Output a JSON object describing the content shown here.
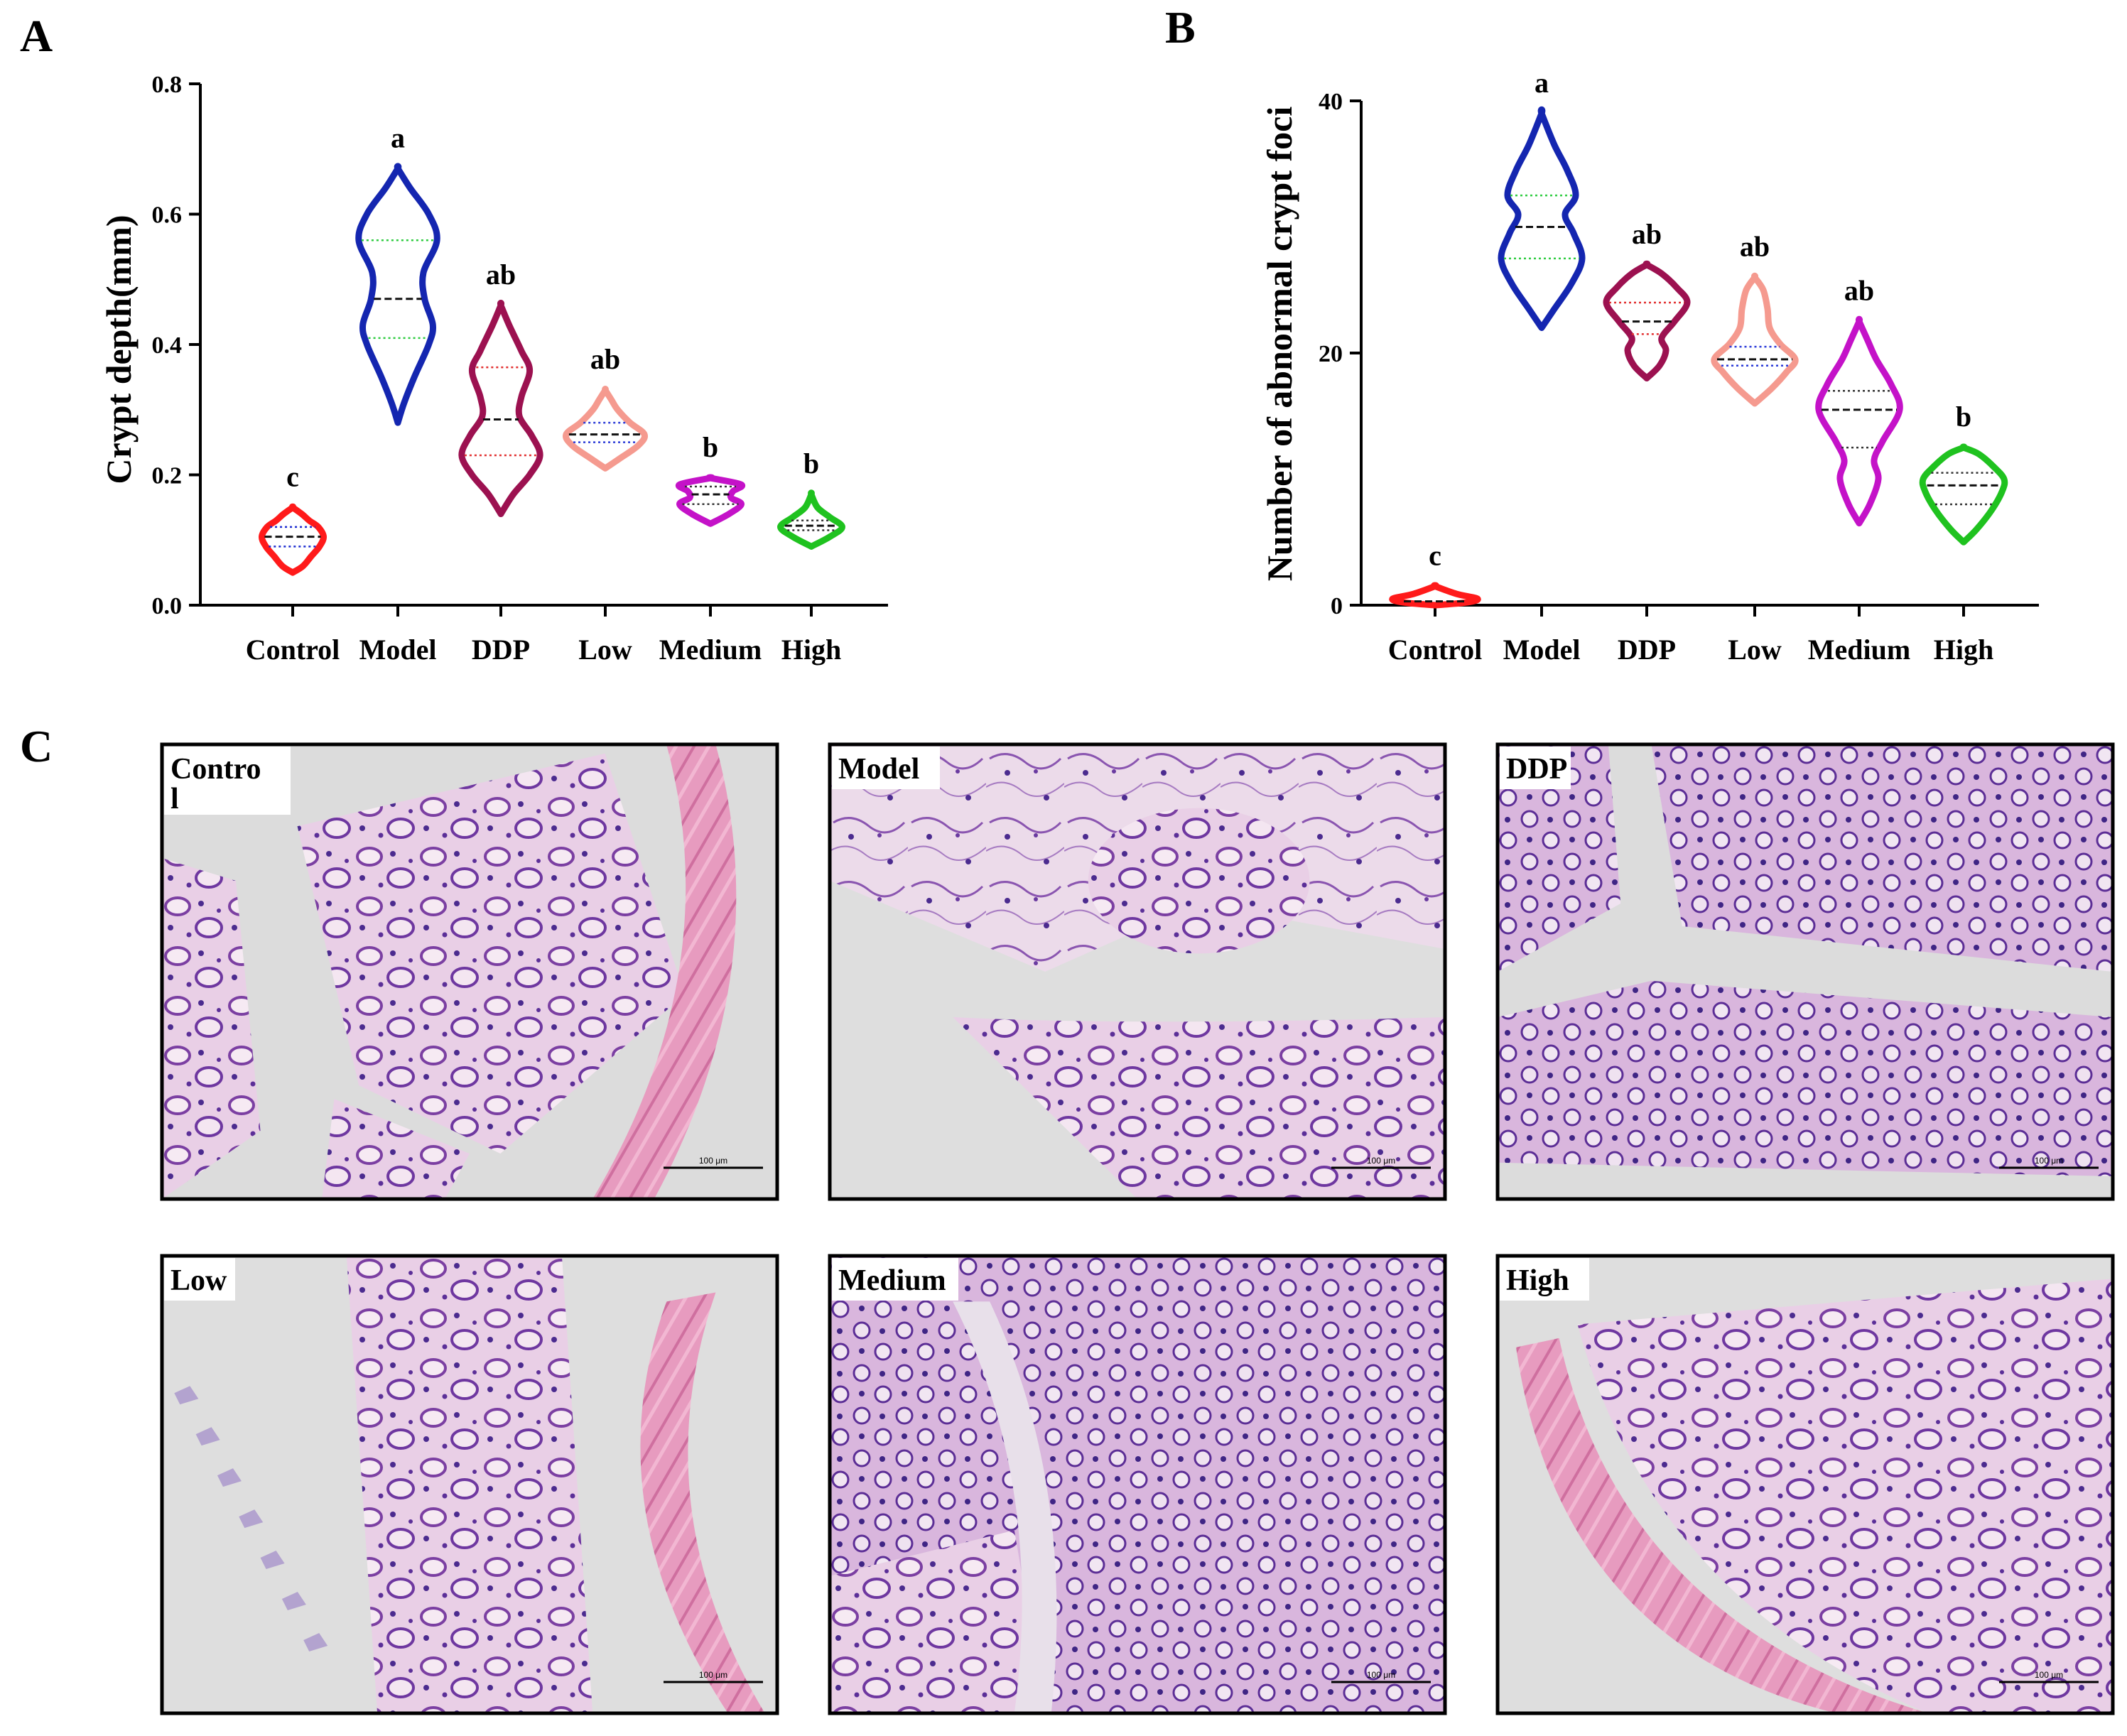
{
  "panels": {
    "a": "A",
    "b": "B",
    "c": "C"
  },
  "colors": {
    "Control": "#ff1a1a",
    "Model": "#1426b0",
    "DDP": "#9c1150",
    "Low": "#f59a8f",
    "Medium": "#c412c8",
    "High": "#1fc21f"
  },
  "chart_data": [
    {
      "type": "violin",
      "panel": "A",
      "title": "",
      "xlabel": "",
      "ylabel": "Crypt depth(mm)",
      "ylim": [
        0,
        0.8
      ],
      "yticks": [
        0.0,
        0.2,
        0.4,
        0.6,
        0.8
      ],
      "ytick_labels": [
        "0.0",
        "0.2",
        "0.4",
        "0.6",
        "0.8"
      ],
      "categories": [
        "Control",
        "Model",
        "DDP",
        "Low",
        "Medium",
        "High"
      ],
      "series": [
        {
          "name": "Control",
          "min": 0.05,
          "max": 0.15,
          "q1": 0.09,
          "median": 0.105,
          "q3": 0.12,
          "sig": "c",
          "profile": [
            [
              0.05,
              0.0
            ],
            [
              0.06,
              0.25
            ],
            [
              0.075,
              0.45
            ],
            [
              0.09,
              0.65
            ],
            [
              0.105,
              0.75
            ],
            [
              0.12,
              0.62
            ],
            [
              0.13,
              0.4
            ],
            [
              0.14,
              0.22
            ],
            [
              0.15,
              0.0
            ]
          ]
        },
        {
          "name": "Model",
          "min": 0.28,
          "max": 0.67,
          "q1": 0.41,
          "median": 0.47,
          "q3": 0.56,
          "sig": "a",
          "profile": [
            [
              0.28,
              0.0
            ],
            [
              0.31,
              0.15
            ],
            [
              0.35,
              0.4
            ],
            [
              0.4,
              0.75
            ],
            [
              0.43,
              0.85
            ],
            [
              0.47,
              0.65
            ],
            [
              0.51,
              0.62
            ],
            [
              0.56,
              0.95
            ],
            [
              0.6,
              0.75
            ],
            [
              0.64,
              0.3
            ],
            [
              0.67,
              0.0
            ]
          ]
        },
        {
          "name": "DDP",
          "min": 0.14,
          "max": 0.46,
          "q1": 0.23,
          "median": 0.285,
          "q3": 0.365,
          "sig": "ab",
          "profile": [
            [
              0.14,
              0.0
            ],
            [
              0.17,
              0.3
            ],
            [
              0.2,
              0.7
            ],
            [
              0.23,
              0.95
            ],
            [
              0.26,
              0.75
            ],
            [
              0.29,
              0.45
            ],
            [
              0.32,
              0.5
            ],
            [
              0.36,
              0.7
            ],
            [
              0.39,
              0.5
            ],
            [
              0.43,
              0.2
            ],
            [
              0.46,
              0.0
            ]
          ]
        },
        {
          "name": "Low",
          "min": 0.21,
          "max": 0.33,
          "q1": 0.25,
          "median": 0.262,
          "q3": 0.28,
          "sig": "ab",
          "profile": [
            [
              0.21,
              0.0
            ],
            [
              0.225,
              0.35
            ],
            [
              0.245,
              0.8
            ],
            [
              0.262,
              0.95
            ],
            [
              0.28,
              0.6
            ],
            [
              0.3,
              0.3
            ],
            [
              0.315,
              0.15
            ],
            [
              0.33,
              0.0
            ]
          ]
        },
        {
          "name": "Medium",
          "min": 0.125,
          "max": 0.195,
          "q1": 0.155,
          "median": 0.17,
          "q3": 0.182,
          "sig": "b",
          "profile": [
            [
              0.125,
              0.0
            ],
            [
              0.14,
              0.45
            ],
            [
              0.155,
              0.75
            ],
            [
              0.165,
              0.5
            ],
            [
              0.175,
              0.55
            ],
            [
              0.185,
              0.75
            ],
            [
              0.195,
              0.0
            ]
          ]
        },
        {
          "name": "High",
          "min": 0.09,
          "max": 0.17,
          "q1": 0.115,
          "median": 0.122,
          "q3": 0.13,
          "sig": "b",
          "profile": [
            [
              0.09,
              0.0
            ],
            [
              0.105,
              0.45
            ],
            [
              0.12,
              0.75
            ],
            [
              0.135,
              0.45
            ],
            [
              0.15,
              0.15
            ],
            [
              0.17,
              0.0
            ]
          ]
        }
      ]
    },
    {
      "type": "violin",
      "panel": "B",
      "title": "",
      "xlabel": "",
      "ylabel": "Number of abnormal crypt foci",
      "ylim": [
        0,
        40
      ],
      "yticks": [
        0,
        20,
        40
      ],
      "ytick_labels": [
        "0",
        "20",
        "40"
      ],
      "categories": [
        "Control",
        "Model",
        "DDP",
        "Low",
        "Medium",
        "High"
      ],
      "series": [
        {
          "name": "Control",
          "min": 0,
          "max": 1.5,
          "median": 0.3,
          "sig": "c",
          "profile": [
            [
              0,
              0.0
            ],
            [
              0.2,
              0.7
            ],
            [
              0.5,
              1.0
            ],
            [
              0.9,
              0.5
            ],
            [
              1.5,
              0.0
            ]
          ]
        },
        {
          "name": "Model",
          "min": 22,
          "max": 39,
          "q1": 27.5,
          "median": 30,
          "q3": 32.5,
          "sig": "a",
          "profile": [
            [
              22,
              0.0
            ],
            [
              23.5,
              0.3
            ],
            [
              25.5,
              0.7
            ],
            [
              27.5,
              0.95
            ],
            [
              29.5,
              0.75
            ],
            [
              31,
              0.55
            ],
            [
              32.5,
              0.8
            ],
            [
              34.5,
              0.6
            ],
            [
              36.5,
              0.3
            ],
            [
              39,
              0.0
            ]
          ]
        },
        {
          "name": "DDP",
          "min": 18,
          "max": 27,
          "q1": 21.5,
          "median": 22.5,
          "q3": 24,
          "sig": "ab",
          "profile": [
            [
              18,
              0.0
            ],
            [
              19,
              0.3
            ],
            [
              20.2,
              0.45
            ],
            [
              21.2,
              0.35
            ],
            [
              22.5,
              0.65
            ],
            [
              24,
              0.95
            ],
            [
              25.2,
              0.7
            ],
            [
              26.3,
              0.35
            ],
            [
              27,
              0.0
            ]
          ]
        },
        {
          "name": "Low",
          "min": 16,
          "max": 26,
          "q1": 19,
          "median": 19.5,
          "q3": 20.5,
          "sig": "ab",
          "profile": [
            [
              16,
              0.0
            ],
            [
              17.2,
              0.4
            ],
            [
              18.5,
              0.75
            ],
            [
              19.5,
              0.95
            ],
            [
              20.7,
              0.6
            ],
            [
              22,
              0.35
            ],
            [
              23.5,
              0.3
            ],
            [
              25,
              0.2
            ],
            [
              26,
              0.0
            ]
          ]
        },
        {
          "name": "Medium",
          "min": 6.5,
          "max": 22.5,
          "q1": 12.5,
          "median": 15.5,
          "q3": 17,
          "sig": "ab",
          "profile": [
            [
              6.5,
              0.0
            ],
            [
              8,
              0.25
            ],
            [
              10,
              0.45
            ],
            [
              11.5,
              0.35
            ],
            [
              13,
              0.55
            ],
            [
              15.5,
              0.95
            ],
            [
              17.5,
              0.75
            ],
            [
              19.5,
              0.4
            ],
            [
              21,
              0.2
            ],
            [
              22.5,
              0.0
            ]
          ]
        },
        {
          "name": "High",
          "min": 5,
          "max": 12.5,
          "q1": 8,
          "median": 9.5,
          "q3": 10.5,
          "sig": "b",
          "profile": [
            [
              5,
              0.0
            ],
            [
              6,
              0.3
            ],
            [
              7.5,
              0.65
            ],
            [
              9,
              0.9
            ],
            [
              10,
              0.95
            ],
            [
              11,
              0.7
            ],
            [
              12,
              0.35
            ],
            [
              12.5,
              0.0
            ]
          ]
        }
      ]
    }
  ],
  "micrographs": [
    {
      "label": "Contro\nl",
      "scale": "100 μm",
      "theme": "control"
    },
    {
      "label": "Model",
      "scale": "100 μm",
      "theme": "model"
    },
    {
      "label": "DDP",
      "scale": "100 μm",
      "theme": "ddp"
    },
    {
      "label": "Low",
      "scale": "100 μm",
      "theme": "low"
    },
    {
      "label": "Medium",
      "scale": "100 μm",
      "theme": "medium"
    },
    {
      "label": "High",
      "scale": "100 μm",
      "theme": "high"
    }
  ]
}
